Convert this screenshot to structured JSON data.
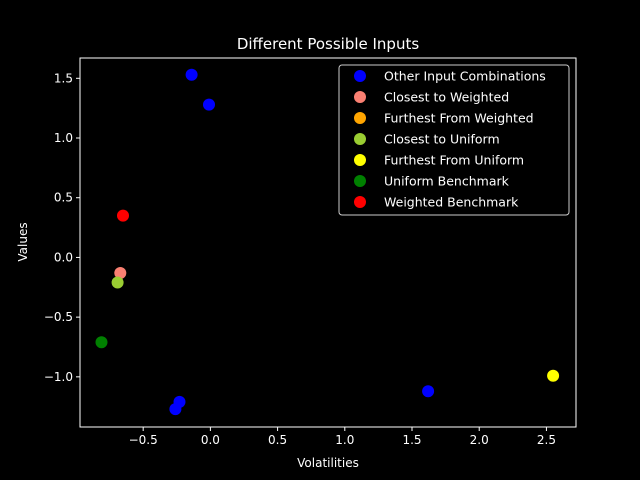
{
  "chart_data": {
    "type": "scatter",
    "title": "Different Possible Inputs",
    "xlabel": "Volatilities",
    "ylabel": "Values",
    "xlim": [
      -0.97,
      2.72
    ],
    "ylim": [
      -1.42,
      1.67
    ],
    "xticks": [
      {
        "value": -0.5,
        "label": "−0.5"
      },
      {
        "value": 0.0,
        "label": "0.0"
      },
      {
        "value": 0.5,
        "label": "0.5"
      },
      {
        "value": 1.0,
        "label": "1.0"
      },
      {
        "value": 1.5,
        "label": "1.5"
      },
      {
        "value": 2.0,
        "label": "2.0"
      },
      {
        "value": 2.5,
        "label": "2.5"
      }
    ],
    "yticks": [
      {
        "value": -1.0,
        "label": "−1.0"
      },
      {
        "value": -0.5,
        "label": "−0.5"
      },
      {
        "value": 0.0,
        "label": "0.0"
      },
      {
        "value": 0.5,
        "label": "0.5"
      },
      {
        "value": 1.0,
        "label": "1.0"
      },
      {
        "value": 1.5,
        "label": "1.5"
      }
    ],
    "grid": false,
    "legend_position": "top-right",
    "background": "#000000",
    "foreground": "#ffffff",
    "series": [
      {
        "name": "Other Input Combinations",
        "color": "#0000ff",
        "points": [
          [
            -0.14,
            1.53
          ],
          [
            -0.01,
            1.28
          ],
          [
            -0.23,
            -1.21
          ],
          [
            -0.26,
            -1.27
          ],
          [
            1.62,
            -1.12
          ]
        ]
      },
      {
        "name": "Closest to Weighted",
        "color": "#fa8072",
        "points": [
          [
            -0.67,
            -0.13
          ]
        ]
      },
      {
        "name": "Furthest From Weighted",
        "color": "#ffa500",
        "points": []
      },
      {
        "name": "Closest to Uniform",
        "color": "#9acd32",
        "points": [
          [
            -0.69,
            -0.21
          ]
        ]
      },
      {
        "name": "Furthest From Uniform",
        "color": "#ffff00",
        "points": [
          [
            2.55,
            -0.99
          ]
        ]
      },
      {
        "name": "Uniform Benchmark",
        "color": "#008000",
        "points": [
          [
            -0.81,
            -0.71
          ]
        ]
      },
      {
        "name": "Weighted Benchmark",
        "color": "#ff0000",
        "points": [
          [
            -0.65,
            0.35
          ]
        ]
      }
    ]
  }
}
